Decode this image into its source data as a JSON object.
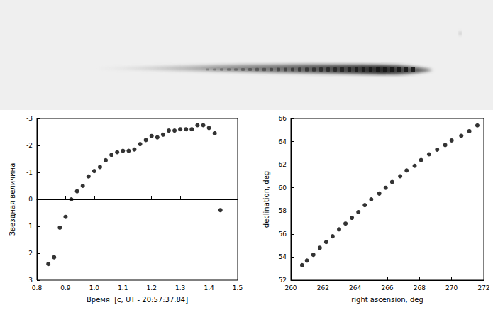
{
  "chart_data": [
    {
      "type": "scatter",
      "x_label": "Время  [с, UT - 20:57:37.84]",
      "y_label": "Звездная величина",
      "x": [
        0.84,
        0.86,
        0.88,
        0.9,
        0.92,
        0.94,
        0.96,
        0.98,
        1.0,
        1.02,
        1.04,
        1.06,
        1.08,
        1.1,
        1.12,
        1.14,
        1.16,
        1.18,
        1.2,
        1.22,
        1.24,
        1.26,
        1.28,
        1.3,
        1.32,
        1.34,
        1.36,
        1.38,
        1.4,
        1.42,
        1.44
      ],
      "values": [
        2.4,
        2.15,
        1.05,
        0.65,
        0.0,
        -0.3,
        -0.5,
        -0.85,
        -1.05,
        -1.2,
        -1.45,
        -1.65,
        -1.75,
        -1.8,
        -1.8,
        -1.85,
        -2.05,
        -2.2,
        -2.35,
        -2.3,
        -2.4,
        -2.55,
        -2.55,
        -2.6,
        -2.6,
        -2.6,
        -2.75,
        -2.75,
        -2.65,
        -2.45,
        0.4
      ],
      "xlim": [
        0.8,
        1.5
      ],
      "xticks": [
        0.8,
        0.9,
        {
          "value": 1,
          "label": "1.0"
        },
        1.1,
        1.2,
        1.3,
        1.4,
        1.5
      ],
      "ylim": [
        3,
        -3
      ],
      "yticks": [
        3,
        2,
        1,
        0,
        -1,
        -2,
        -3
      ],
      "color": "#000000",
      "marker": "circle",
      "grid": false
    },
    {
      "type": "scatter",
      "x_label": "right ascension, deg",
      "y_label": "declination, deg",
      "x": [
        260.7,
        261.0,
        261.4,
        261.8,
        262.2,
        262.6,
        263.0,
        263.4,
        263.8,
        264.2,
        264.6,
        265.0,
        265.5,
        265.9,
        266.3,
        266.8,
        267.2,
        267.7,
        268.1,
        268.6,
        269.1,
        269.6,
        270.0,
        270.6,
        271.1,
        271.6
      ],
      "values": [
        53.3,
        53.7,
        54.2,
        54.8,
        55.3,
        55.8,
        56.4,
        56.9,
        57.4,
        57.9,
        58.5,
        59.0,
        59.5,
        60.0,
        60.5,
        61.0,
        61.5,
        61.9,
        62.4,
        62.9,
        63.3,
        63.7,
        64.1,
        64.5,
        64.9,
        65.4
      ],
      "xlim": [
        260,
        272
      ],
      "xticks": [
        260,
        262,
        264,
        266,
        268,
        270,
        272
      ],
      "ylim": [
        52,
        66
      ],
      "yticks": [
        52,
        54,
        56,
        58,
        60,
        62,
        64,
        66
      ],
      "color": "#000000",
      "marker": "circle",
      "grid": false
    }
  ]
}
